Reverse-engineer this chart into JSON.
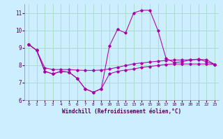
{
  "xlabel": "Windchill (Refroidissement éolien,°C)",
  "background_color": "#cceeff",
  "grid_color": "#aaddcc",
  "line_color": "#aa00aa",
  "xlim": [
    -0.5,
    23.5
  ],
  "ylim": [
    6.0,
    11.5
  ],
  "yticks": [
    6,
    7,
    8,
    9,
    10,
    11
  ],
  "xticks": [
    0,
    1,
    2,
    3,
    4,
    5,
    6,
    7,
    8,
    9,
    10,
    11,
    12,
    13,
    14,
    15,
    16,
    17,
    18,
    19,
    20,
    21,
    22,
    23
  ],
  "line1_y": [
    9.2,
    8.85,
    7.65,
    7.5,
    7.65,
    7.6,
    7.25,
    6.65,
    6.45,
    6.65,
    9.1,
    10.05,
    9.85,
    11.0,
    11.15,
    11.15,
    10.0,
    8.4,
    8.15,
    8.2,
    8.3,
    8.35,
    8.2,
    8.05
  ],
  "line2_y": [
    9.2,
    8.85,
    7.85,
    7.75,
    7.75,
    7.75,
    7.72,
    7.7,
    7.7,
    7.72,
    7.78,
    7.88,
    7.98,
    8.08,
    8.13,
    8.18,
    8.23,
    8.27,
    8.3,
    8.3,
    8.31,
    8.32,
    8.32,
    8.05
  ],
  "line3_y": [
    9.2,
    8.85,
    7.65,
    7.5,
    7.65,
    7.6,
    7.25,
    6.65,
    6.45,
    6.65,
    7.5,
    7.65,
    7.72,
    7.78,
    7.88,
    7.93,
    7.98,
    8.05,
    8.07,
    8.07,
    8.07,
    8.07,
    8.07,
    8.05
  ]
}
